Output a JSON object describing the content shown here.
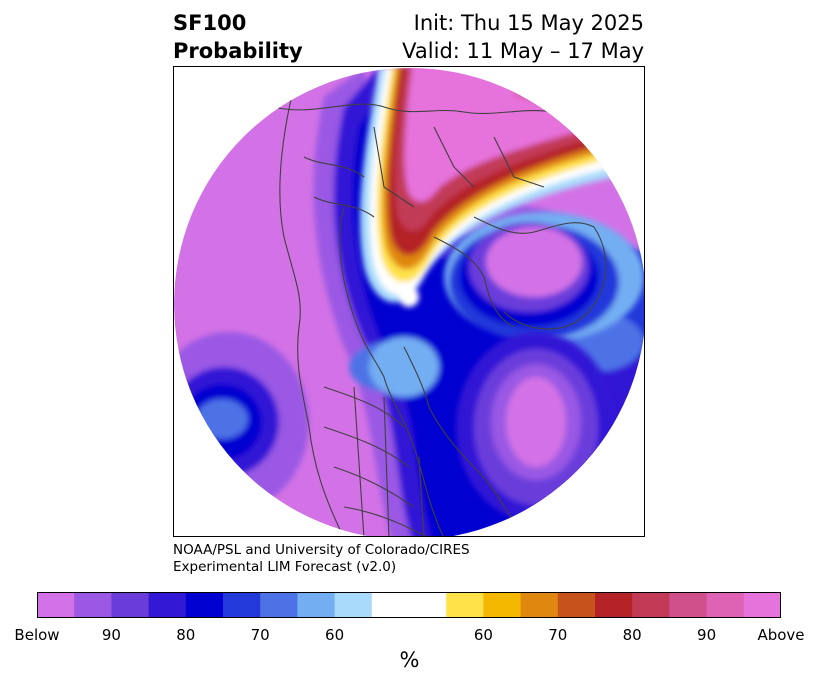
{
  "header": {
    "title_line1": "SF100",
    "title_line2": "Probability",
    "init_label": "Init: Thu 15 May 2025",
    "valid_label": "Valid: 11 May – 17 May"
  },
  "credit": {
    "line1": "NOAA/PSL and University of Colorado/CIRES",
    "line2": "Experimental LIM Forecast (v2.0)"
  },
  "colorbar": {
    "colors": [
      "#d372e6",
      "#9a58e4",
      "#6a3ddb",
      "#3219d6",
      "#0000d0",
      "#2439da",
      "#4d72e6",
      "#73aef2",
      "#a8dbfb",
      "#ffffff",
      "#ffe24a",
      "#f5b800",
      "#e08710",
      "#c6531c",
      "#b42226",
      "#c23a56",
      "#cf508a",
      "#df63b4",
      "#e672dc"
    ],
    "tick_labels": [
      "Below",
      "90",
      "80",
      "70",
      "60",
      "60",
      "70",
      "80",
      "90",
      "Above"
    ],
    "unit": "%"
  }
}
